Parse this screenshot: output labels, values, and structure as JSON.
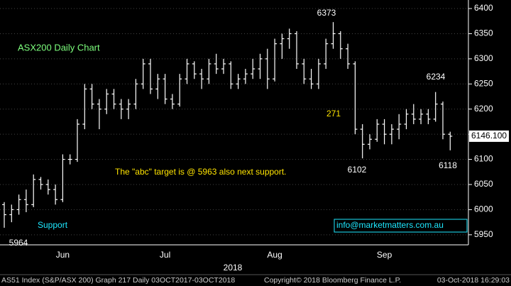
{
  "chart_data": {
    "type": "ohlc",
    "title": "ASX200 Daily Chart",
    "categories": [
      null,
      null,
      null,
      null,
      null,
      null,
      null,
      null,
      "Jun",
      null,
      null,
      null,
      null,
      null,
      null,
      null,
      null,
      null,
      null,
      null,
      null,
      null,
      "Jul",
      null,
      null,
      null,
      null,
      null,
      null,
      null,
      null,
      null,
      null,
      null,
      null,
      null,
      null,
      "Aug",
      null,
      null,
      null,
      null,
      null,
      null,
      null,
      null,
      null,
      null,
      null,
      null,
      null,
      null,
      "Sep",
      null,
      null,
      null,
      null,
      null,
      null,
      null,
      null,
      null
    ],
    "open": [
      6010,
      5990,
      6000,
      6020,
      6010,
      6060,
      6050,
      6040,
      6020,
      6100,
      6100,
      6170,
      6240,
      6210,
      6200,
      6230,
      6210,
      6200,
      6210,
      6250,
      6290,
      6240,
      6260,
      6220,
      6210,
      6260,
      6290,
      6270,
      6260,
      6290,
      6280,
      6290,
      6250,
      6260,
      6270,
      6280,
      6300,
      6260,
      6330,
      6340,
      6350,
      6290,
      6260,
      6250,
      6290,
      6330,
      6350,
      6320,
      6290,
      6160,
      6130,
      6140,
      6170,
      6150,
      6160,
      6170,
      6190,
      6180,
      6190,
      6180,
      6210,
      6150
    ],
    "high": [
      6015,
      6010,
      6030,
      6040,
      6070,
      6065,
      6060,
      6050,
      6110,
      6110,
      6180,
      6250,
      6250,
      6220,
      6240,
      6240,
      6220,
      6220,
      6260,
      6300,
      6300,
      6270,
      6270,
      6230,
      6270,
      6300,
      6295,
      6280,
      6300,
      6310,
      6300,
      6295,
      6270,
      6280,
      6300,
      6310,
      6320,
      6340,
      6350,
      6360,
      6355,
      6300,
      6280,
      6300,
      6340,
      6373,
      6355,
      6330,
      6295,
      6170,
      6150,
      6180,
      6180,
      6170,
      6190,
      6200,
      6210,
      6200,
      6200,
      6234,
      6215,
      6155
    ],
    "low": [
      5964,
      5975,
      5990,
      5995,
      6005,
      6040,
      6030,
      6010,
      6015,
      6090,
      6095,
      6160,
      6200,
      6160,
      6190,
      6200,
      6180,
      6180,
      6200,
      6240,
      6230,
      6220,
      6210,
      6200,
      6205,
      6250,
      6260,
      6240,
      6250,
      6270,
      6270,
      6240,
      6240,
      6250,
      6260,
      6260,
      6240,
      6255,
      6300,
      6320,
      6280,
      6250,
      6240,
      6240,
      6280,
      6320,
      6300,
      6280,
      6150,
      6102,
      6120,
      6135,
      6130,
      6130,
      6140,
      6160,
      6170,
      6170,
      6170,
      6175,
      6140,
      6118
    ],
    "close": [
      5990,
      6000,
      6020,
      6010,
      6060,
      6050,
      6040,
      6020,
      6100,
      6100,
      6170,
      6240,
      6210,
      6200,
      6230,
      6210,
      6200,
      6210,
      6250,
      6290,
      6240,
      6260,
      6220,
      6210,
      6260,
      6290,
      6270,
      6260,
      6290,
      6280,
      6290,
      6250,
      6260,
      6270,
      6280,
      6300,
      6260,
      6330,
      6340,
      6350,
      6290,
      6260,
      6250,
      6290,
      6330,
      6350,
      6320,
      6290,
      6160,
      6130,
      6140,
      6170,
      6150,
      6160,
      6170,
      6190,
      6180,
      6190,
      6180,
      6210,
      6150,
      6146.1
    ],
    "last_price_label": "6146.100",
    "ylim": [
      5930,
      6417
    ],
    "yticks": [
      5950,
      6000,
      6050,
      6100,
      6150,
      6200,
      6250,
      6300,
      6350,
      6400
    ],
    "x_axis_label": "2018",
    "annotations": [
      "6373",
      "6234",
      "271",
      "6102",
      "6118",
      "5964",
      "The \"abc\" target is @ 5963 also next support.",
      "Support",
      "info@marketmatters.com.au"
    ],
    "footer": [
      "AS51 Index (S&P/ASX 200) Graph 217  Daily 03OCT2017-03OCT2018",
      "Copyright© 2018 Bloomberg Finance L.P.",
      "03-Oct-2018 16:29:03"
    ],
    "grid": true
  }
}
